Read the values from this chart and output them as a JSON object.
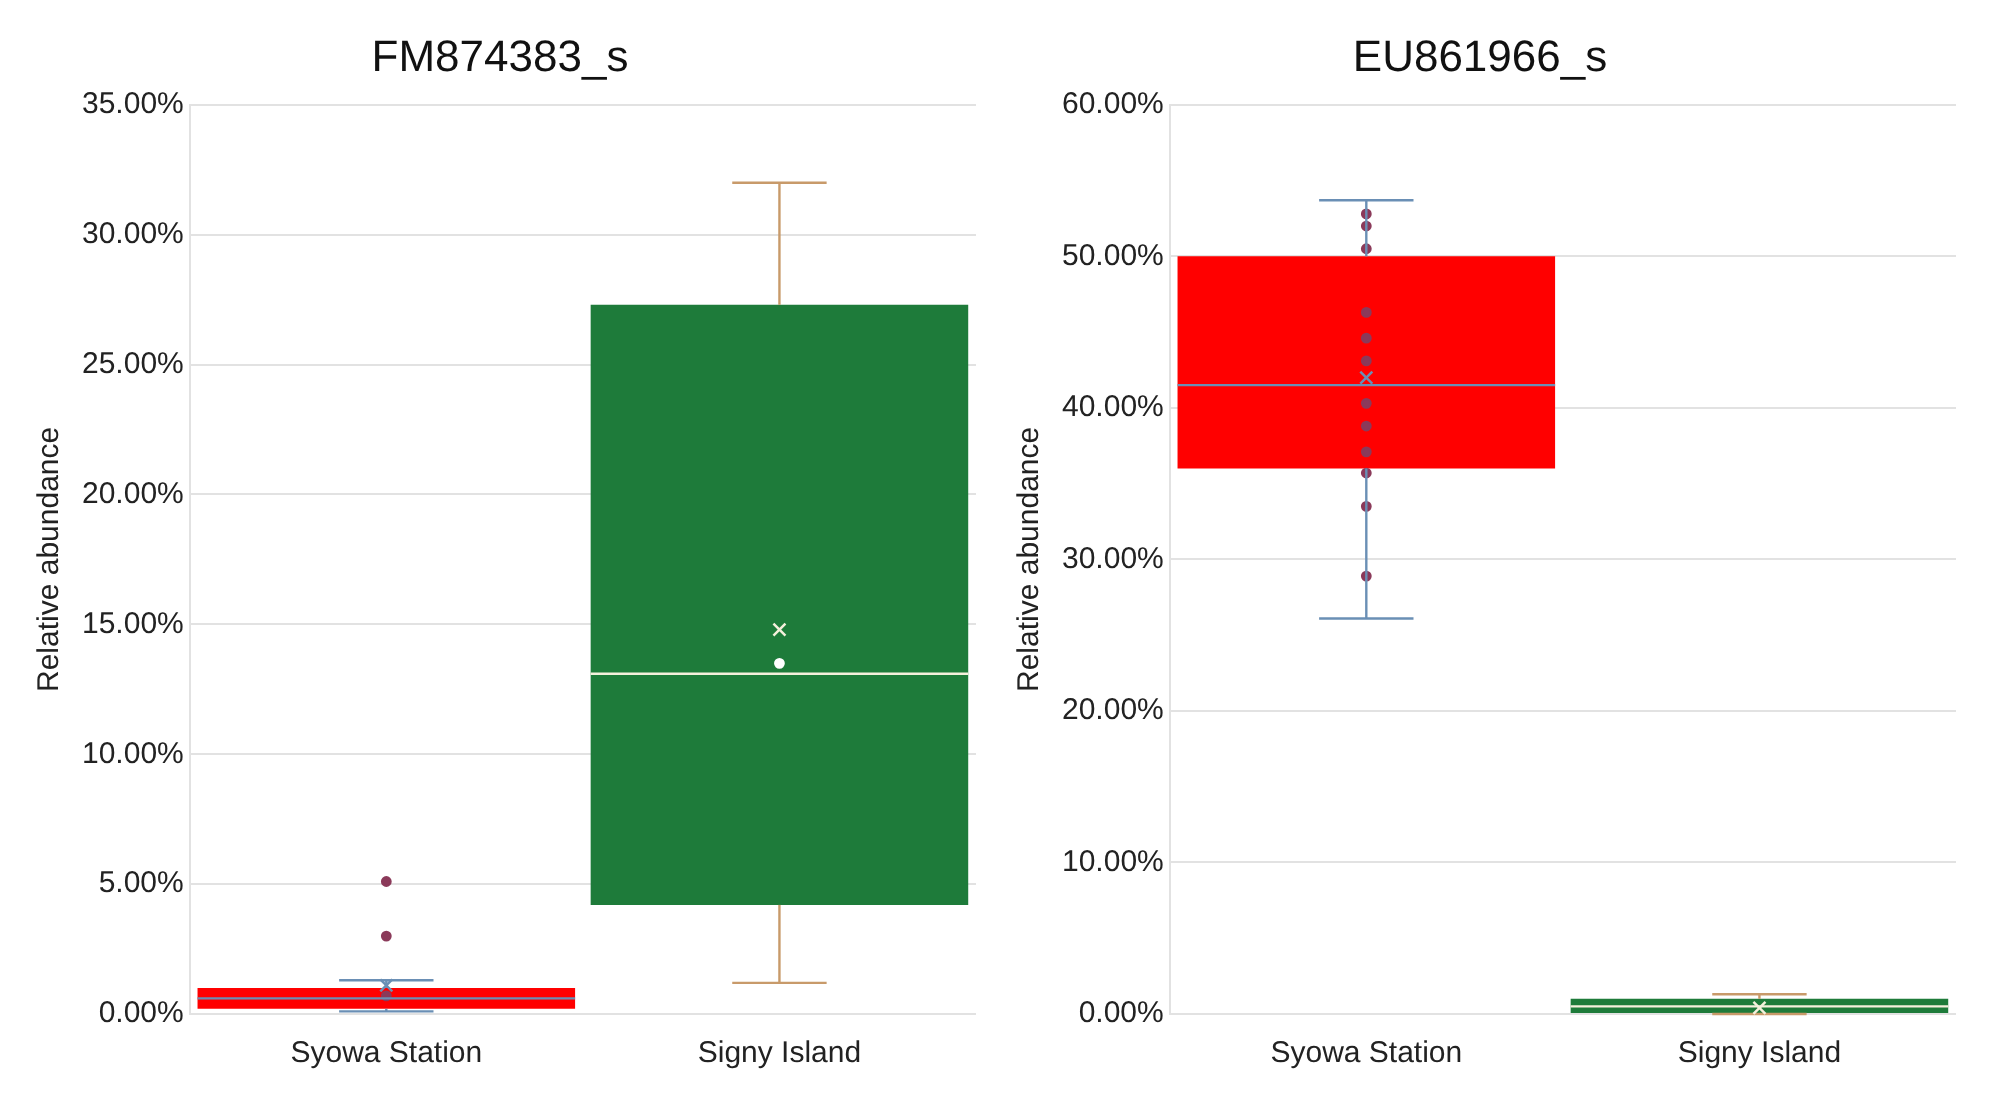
{
  "chart_data": [
    {
      "type": "box",
      "title": "FM874383_s",
      "ylabel": "Relative abundance",
      "categories": [
        "Syowa Station",
        "Signy Island"
      ],
      "colors": [
        "#ff0000",
        "#1e7b3a"
      ],
      "boxes": [
        {
          "low": 0.1,
          "q1": 0.2,
          "median": 0.6,
          "q3": 1.0,
          "high": 1.3,
          "mean": 1.1
        },
        {
          "low": 1.2,
          "q1": 4.2,
          "median": 13.1,
          "q3": 27.3,
          "high": 32,
          "mean": 14.8
        }
      ],
      "series": [
        {
          "type": "scatter",
          "color": "#8b3a5a",
          "x": [
            "Syowa Station",
            "Syowa Station",
            "Syowa Station"
          ],
          "values": [
            5.1,
            3.0,
            0.7
          ]
        },
        {
          "type": "scatter",
          "color": "#ffffff",
          "x": [
            "Signy Island"
          ],
          "values": [
            13.5
          ]
        }
      ],
      "ylim": [
        0,
        35
      ],
      "yticks": [
        {
          "value": 0,
          "label": "0.00%"
        },
        {
          "value": 5,
          "label": "5.00%"
        },
        {
          "value": 10,
          "label": "10.00%"
        },
        {
          "value": 15,
          "label": "15.00%"
        },
        {
          "value": 20,
          "label": "20.00%"
        },
        {
          "value": 25,
          "label": "25.00%"
        },
        {
          "value": 30,
          "label": "30.00%"
        },
        {
          "value": 35,
          "label": "35.00%"
        }
      ],
      "grid": "y",
      "marker": "circle"
    },
    {
      "type": "box",
      "title": "EU861966_s",
      "ylabel": "Relative abundance",
      "categories": [
        "Syowa Station",
        "Signy Island"
      ],
      "colors": [
        "#ff0000",
        "#1e7b3a"
      ],
      "boxes": [
        {
          "low": 26.1,
          "q1": 36,
          "median": 41.5,
          "q3": 50,
          "high": 53.7,
          "mean": 42
        },
        {
          "low": 0,
          "q1": 0,
          "median": 0.5,
          "q3": 1.0,
          "high": 1.3,
          "mean": 0.4
        }
      ],
      "series": [
        {
          "type": "scatter",
          "color": "#8b3a5a",
          "x": [
            "Syowa Station",
            "Syowa Station",
            "Syowa Station",
            "Syowa Station",
            "Syowa Station",
            "Syowa Station",
            "Syowa Station",
            "Syowa Station",
            "Syowa Station",
            "Syowa Station",
            "Syowa Station",
            "Syowa Station",
            "Syowa Station"
          ],
          "values": [
            52.8,
            52,
            50.5,
            46.3,
            44.6,
            43.1,
            null,
            40.3,
            38.8,
            37.1,
            35.7,
            33.5,
            28.9
          ]
        }
      ],
      "ylim": [
        0,
        60
      ],
      "yticks": [
        {
          "value": 0,
          "label": "0.00%"
        },
        {
          "value": 10,
          "label": "10.00%"
        },
        {
          "value": 20,
          "label": "20.00%"
        },
        {
          "value": 30,
          "label": "30.00%"
        },
        {
          "value": 40,
          "label": "40.00%"
        },
        {
          "value": 50,
          "label": "50.00%"
        },
        {
          "value": 60,
          "label": "60.00%"
        }
      ],
      "grid": "y",
      "marker": "circle"
    }
  ]
}
